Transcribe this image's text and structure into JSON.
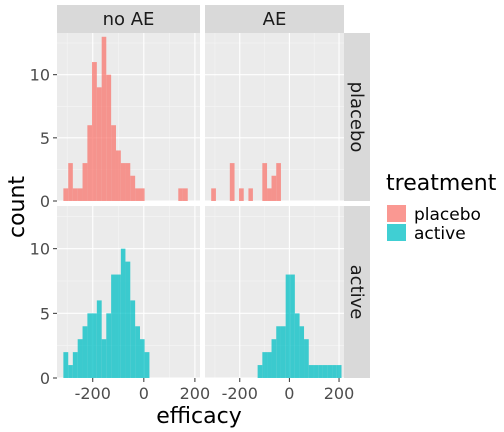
{
  "chart_data": {
    "type": "histogram",
    "facet_columns": [
      "no AE",
      "AE"
    ],
    "facet_rows": [
      "placebo",
      "active"
    ],
    "xlabel": "efficacy",
    "ylabel": "count",
    "x_ticks": [
      -200,
      0,
      200
    ],
    "x_tick_labels": [
      "-200",
      "0",
      "200"
    ],
    "y_ticks": [
      0,
      5,
      10
    ],
    "y_tick_labels": [
      "0",
      "5",
      "10"
    ],
    "xlim": [
      -340,
      220
    ],
    "ylim": [
      0,
      13.3
    ],
    "bin_width": 18.7,
    "grid": "on",
    "legend": {
      "title": "treatment",
      "position": "right",
      "items": [
        {
          "label": "placebo",
          "color": "#F8766D"
        },
        {
          "label": "active",
          "color": "#00BFC4"
        }
      ]
    },
    "panels": [
      {
        "col": "no AE",
        "row": "placebo",
        "fill": "#F8766D",
        "bins": [
          {
            "x0": -315,
            "x1": -296,
            "count": 1
          },
          {
            "x0": -296,
            "x1": -278,
            "count": 3
          },
          {
            "x0": -278,
            "x1": -259,
            "count": 1
          },
          {
            "x0": -259,
            "x1": -240,
            "count": 1
          },
          {
            "x0": -240,
            "x1": -221,
            "count": 3
          },
          {
            "x0": -221,
            "x1": -203,
            "count": 6
          },
          {
            "x0": -203,
            "x1": -184,
            "count": 11
          },
          {
            "x0": -184,
            "x1": -165,
            "count": 9
          },
          {
            "x0": -165,
            "x1": -147,
            "count": 13
          },
          {
            "x0": -147,
            "x1": -128,
            "count": 10
          },
          {
            "x0": -128,
            "x1": -109,
            "count": 6
          },
          {
            "x0": -109,
            "x1": -90,
            "count": 4
          },
          {
            "x0": -90,
            "x1": -72,
            "count": 3
          },
          {
            "x0": -72,
            "x1": -53,
            "count": 3
          },
          {
            "x0": -53,
            "x1": -34,
            "count": 2
          },
          {
            "x0": -34,
            "x1": -15,
            "count": 1
          },
          {
            "x0": -15,
            "x1": 3,
            "count": 1
          },
          {
            "x0": 135,
            "x1": 153,
            "count": 1
          },
          {
            "x0": 153,
            "x1": 172,
            "count": 1
          }
        ]
      },
      {
        "col": "AE",
        "row": "placebo",
        "fill": "#F8766D",
        "bins": [
          {
            "x0": -315,
            "x1": -296,
            "count": 1
          },
          {
            "x0": -240,
            "x1": -221,
            "count": 3
          },
          {
            "x0": -203,
            "x1": -184,
            "count": 1
          },
          {
            "x0": -165,
            "x1": -147,
            "count": 1
          },
          {
            "x0": -109,
            "x1": -90,
            "count": 3
          },
          {
            "x0": -90,
            "x1": -72,
            "count": 1
          },
          {
            "x0": -72,
            "x1": -53,
            "count": 2
          },
          {
            "x0": -53,
            "x1": -34,
            "count": 3
          }
        ]
      },
      {
        "col": "no AE",
        "row": "active",
        "fill": "#00BFC4",
        "bins": [
          {
            "x0": -315,
            "x1": -296,
            "count": 2
          },
          {
            "x0": -296,
            "x1": -278,
            "count": 1
          },
          {
            "x0": -278,
            "x1": -259,
            "count": 2
          },
          {
            "x0": -259,
            "x1": -240,
            "count": 3
          },
          {
            "x0": -240,
            "x1": -221,
            "count": 4
          },
          {
            "x0": -221,
            "x1": -203,
            "count": 5
          },
          {
            "x0": -203,
            "x1": -184,
            "count": 5
          },
          {
            "x0": -184,
            "x1": -165,
            "count": 6
          },
          {
            "x0": -165,
            "x1": -147,
            "count": 3
          },
          {
            "x0": -147,
            "x1": -128,
            "count": 5
          },
          {
            "x0": -128,
            "x1": -109,
            "count": 8
          },
          {
            "x0": -109,
            "x1": -90,
            "count": 8
          },
          {
            "x0": -90,
            "x1": -72,
            "count": 10
          },
          {
            "x0": -72,
            "x1": -53,
            "count": 9
          },
          {
            "x0": -53,
            "x1": -34,
            "count": 6
          },
          {
            "x0": -34,
            "x1": -15,
            "count": 4
          },
          {
            "x0": -15,
            "x1": 3,
            "count": 3
          },
          {
            "x0": 3,
            "x1": 22,
            "count": 2
          }
        ]
      },
      {
        "col": "AE",
        "row": "active",
        "fill": "#00BFC4",
        "bins": [
          {
            "x0": -128,
            "x1": -109,
            "count": 1
          },
          {
            "x0": -109,
            "x1": -90,
            "count": 2
          },
          {
            "x0": -90,
            "x1": -72,
            "count": 2
          },
          {
            "x0": -72,
            "x1": -53,
            "count": 3
          },
          {
            "x0": -53,
            "x1": -34,
            "count": 4
          },
          {
            "x0": -34,
            "x1": -15,
            "count": 4
          },
          {
            "x0": -15,
            "x1": 3,
            "count": 8
          },
          {
            "x0": 3,
            "x1": 22,
            "count": 8
          },
          {
            "x0": 22,
            "x1": 41,
            "count": 5
          },
          {
            "x0": 41,
            "x1": 59,
            "count": 4
          },
          {
            "x0": 59,
            "x1": 78,
            "count": 3
          },
          {
            "x0": 78,
            "x1": 97,
            "count": 1
          },
          {
            "x0": 97,
            "x1": 116,
            "count": 1
          },
          {
            "x0": 116,
            "x1": 135,
            "count": 1
          },
          {
            "x0": 135,
            "x1": 153,
            "count": 1
          },
          {
            "x0": 153,
            "x1": 172,
            "count": 1
          },
          {
            "x0": 172,
            "x1": 191,
            "count": 1
          },
          {
            "x0": 191,
            "x1": 210,
            "count": 1
          }
        ]
      }
    ]
  }
}
